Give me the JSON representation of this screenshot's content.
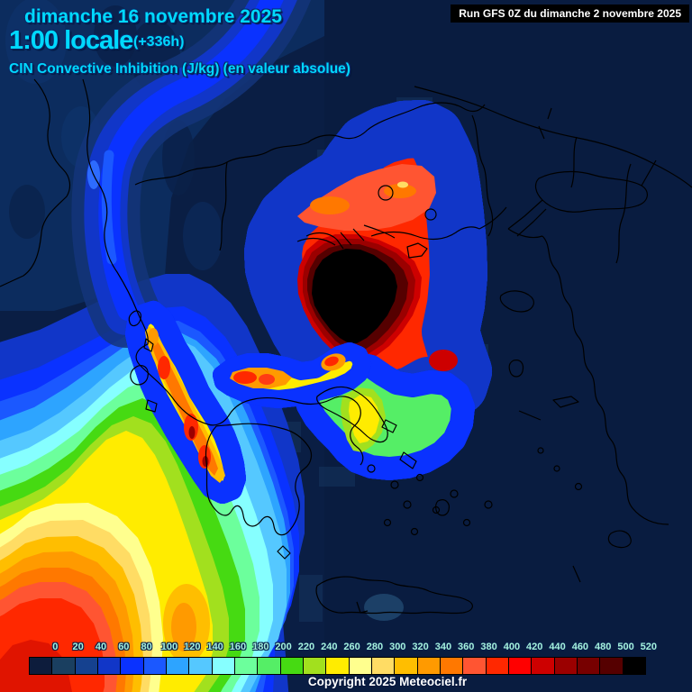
{
  "header": {
    "date_line": "dimanche 16 novembre 2025",
    "time_line": "1:00 locale",
    "forecast_offset": "(+336h)",
    "parameter_line": "CIN Convective Inhibition (J/kg) (en valeur absolue)",
    "run_info": "Run GFS 0Z du dimanche 2 novembre 2025"
  },
  "footer": {
    "copyright": "Copyright 2025 Meteociel.fr"
  },
  "colors": {
    "header_text": "#00d9ff",
    "scale_label_text": "#a6f2de",
    "run_box_bg": "#000000",
    "run_box_text": "#ffffff",
    "sea_background": "#0a1e44"
  },
  "colorbar": {
    "values": [
      "0",
      "20",
      "40",
      "60",
      "80",
      "100",
      "120",
      "140",
      "160",
      "180",
      "200",
      "220",
      "240",
      "260",
      "280",
      "300",
      "320",
      "340",
      "360",
      "380",
      "400",
      "420",
      "440",
      "460",
      "480",
      "500",
      "520"
    ],
    "colors": [
      "#0d1c3c",
      "#1a3f60",
      "#15418f",
      "#1136c8",
      "#0a32ff",
      "#1b58ff",
      "#2da4ff",
      "#55c8ff",
      "#86ffff",
      "#6cff9c",
      "#55ee66",
      "#46da12",
      "#a2e01e",
      "#ffec00",
      "#ffff8e",
      "#ffdc64",
      "#ffbe00",
      "#ff9a00",
      "#ff7800",
      "#ff5532",
      "#ff2800",
      "#ff0000",
      "#cd0000",
      "#9b0000",
      "#770000",
      "#550000",
      "#000000"
    ]
  },
  "chart_data": {
    "type": "heatmap",
    "title": "CIN Convective Inhibition (J/kg) (en valeur absolue)",
    "model_run": "Run GFS 0Z du dimanche 2 novembre 2025",
    "valid_time": "dimanche 16 novembre 2025 1:00 locale (+336h)",
    "unit": "J/kg",
    "region": "Greece / Aegean Sea / Balkans",
    "scale_range": [
      0,
      520
    ],
    "scale_step": 20,
    "legend_position": "bottom",
    "features": [
      {
        "area": "North Aegean / Chalkidiki / Thracian Sea",
        "value": "black core > 520"
      },
      {
        "area": "Ring around North Aegean core",
        "value": "400-500 (dark red to red)"
      },
      {
        "area": "West coast of Greece / Ionian islands streak",
        "value": "380-460"
      },
      {
        "area": "Gulf of Corinth streak",
        "value": "360-420"
      },
      {
        "area": "Central Aegean tongue (Evia/Cyclades)",
        "value": "180-280"
      },
      {
        "area": "South-west Ionian Sea gradient toward bottom-left corner",
        "value": "up to ~420"
      },
      {
        "area": "Adriatic band (north-west)",
        "value": "60-100"
      },
      {
        "area": "Eastern Aegean / Turkey / Balkans interior",
        "value": "0-40 (dark navy)"
      },
      {
        "area": "Spot south-west of Crete",
        "value": "~20-40"
      }
    ]
  }
}
